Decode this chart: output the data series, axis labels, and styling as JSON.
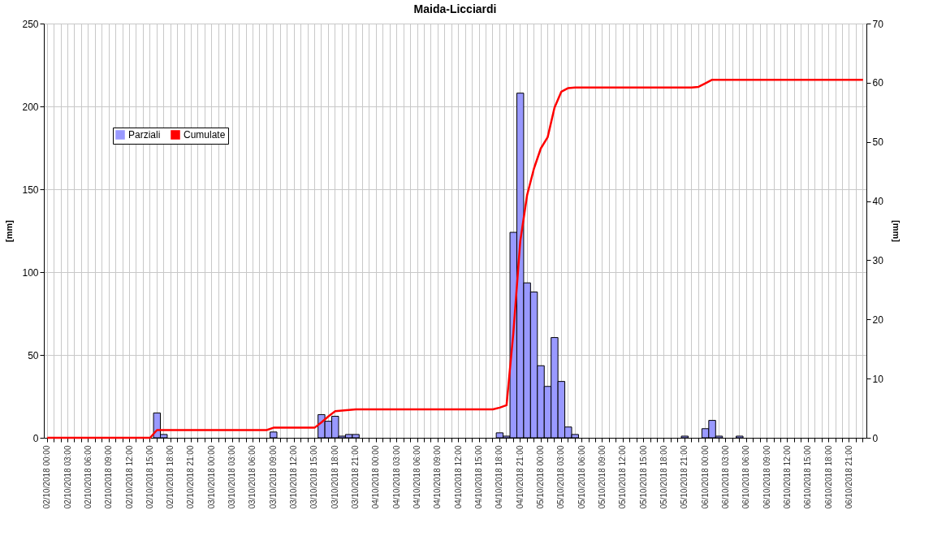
{
  "chart_data": {
    "type": "bar",
    "title": "Maida-Licciardi",
    "ylabel": "[mm]",
    "y2label": "[mm]",
    "categories": [
      "02/10/2018 00:00",
      null,
      null,
      "02/10/2018 03:00",
      null,
      null,
      "02/10/2018 06:00",
      null,
      null,
      "02/10/2018 09:00",
      null,
      null,
      "02/10/2018 12:00",
      null,
      null,
      "02/10/2018 15:00",
      null,
      null,
      "02/10/2018 18:00",
      null,
      null,
      "02/10/2018 21:00",
      null,
      null,
      "03/10/2018 00:00",
      null,
      null,
      "03/10/2018 03:00",
      null,
      null,
      "03/10/2018 06:00",
      null,
      null,
      "03/10/2018 09:00",
      null,
      null,
      "03/10/2018 12:00",
      null,
      null,
      "03/10/2018 15:00",
      null,
      null,
      "03/10/2018 18:00",
      null,
      null,
      "03/10/2018 21:00",
      null,
      null,
      "04/10/2018 00:00",
      null,
      null,
      "04/10/2018 03:00",
      null,
      null,
      "04/10/2018 06:00",
      null,
      null,
      "04/10/2018 09:00",
      null,
      null,
      "04/10/2018 12:00",
      null,
      null,
      "04/10/2018 15:00",
      null,
      null,
      "04/10/2018 18:00",
      null,
      null,
      "04/10/2018 21:00",
      null,
      null,
      "05/10/2018 00:00",
      null,
      null,
      "05/10/2018 03:00",
      null,
      null,
      "05/10/2018 06:00",
      null,
      null,
      "05/10/2018 09:00",
      null,
      null,
      "05/10/2018 12:00",
      null,
      null,
      "05/10/2018 15:00",
      null,
      null,
      "05/10/2018 18:00",
      null,
      null,
      "05/10/2018 21:00",
      null,
      null,
      "06/10/2018 00:00",
      null,
      null,
      "06/10/2018 03:00",
      null,
      null,
      "06/10/2018 06:00",
      null,
      null,
      "06/10/2018 09:00",
      null,
      null,
      "06/10/2018 12:00",
      null,
      null,
      "06/10/2018 15:00",
      null,
      null,
      "06/10/2018 18:00",
      null,
      null,
      "06/10/2018 21:00",
      null,
      null
    ],
    "series": [
      {
        "name": "Parziali",
        "color": "#9999ff",
        "values": [
          0,
          0,
          0,
          0,
          0,
          0,
          0,
          0,
          0,
          0,
          0,
          0,
          0,
          0,
          0,
          0,
          15,
          2,
          0,
          0,
          0,
          0,
          0,
          0,
          0,
          0,
          0,
          0,
          0,
          0,
          0,
          0,
          0,
          3.5,
          0,
          0,
          0,
          0,
          0,
          0,
          14,
          10,
          13,
          1,
          2,
          2,
          0,
          0,
          0,
          0,
          0,
          0,
          0,
          0,
          0,
          0,
          0,
          0,
          0,
          0,
          0,
          0,
          0,
          0,
          0,
          0,
          3,
          1,
          124,
          208,
          93.5,
          88,
          43.5,
          31,
          60.5,
          34,
          6.5,
          2,
          0,
          0,
          0,
          0,
          0,
          0,
          0,
          0,
          0,
          0,
          0,
          0,
          0,
          0,
          0,
          1,
          0,
          0,
          5.5,
          10.5,
          1,
          0,
          0,
          1,
          0,
          0,
          0,
          0,
          0,
          0,
          0,
          0,
          0,
          0,
          0,
          0,
          0,
          0,
          0,
          0,
          0,
          0
        ]
      },
      {
        "name": "Cumulate",
        "type": "line",
        "axis": "y2",
        "color": "#ff0000",
        "values": [
          0,
          0,
          0,
          0,
          0,
          0,
          0,
          0,
          0,
          0,
          0,
          0,
          0,
          0,
          0,
          0,
          1.3,
          1.3,
          1.3,
          1.3,
          1.3,
          1.3,
          1.3,
          1.3,
          1.3,
          1.3,
          1.3,
          1.3,
          1.3,
          1.3,
          1.3,
          1.3,
          1.3,
          1.7,
          1.7,
          1.7,
          1.7,
          1.7,
          1.7,
          1.7,
          2.6,
          3.6,
          4.5,
          4.6,
          4.7,
          4.8,
          4.8,
          4.8,
          4.8,
          4.8,
          4.8,
          4.8,
          4.8,
          4.8,
          4.8,
          4.8,
          4.8,
          4.8,
          4.8,
          4.8,
          4.8,
          4.8,
          4.8,
          4.8,
          4.8,
          4.8,
          5.1,
          5.5,
          17.8,
          33.2,
          41,
          45.5,
          48.9,
          50.8,
          55.8,
          58.5,
          59.1,
          59.2,
          59.2,
          59.2,
          59.2,
          59.2,
          59.2,
          59.2,
          59.2,
          59.2,
          59.2,
          59.2,
          59.2,
          59.2,
          59.2,
          59.2,
          59.2,
          59.2,
          59.2,
          59.3,
          59.9,
          60.5,
          60.5,
          60.5,
          60.5,
          60.5,
          60.5,
          60.5,
          60.5,
          60.5,
          60.5,
          60.5,
          60.5,
          60.5,
          60.5,
          60.5,
          60.5,
          60.5,
          60.5,
          60.5,
          60.5,
          60.5,
          60.5,
          60.5
        ]
      }
    ],
    "ylim": [
      0,
      250
    ],
    "yticks": [
      0,
      50,
      100,
      150,
      200,
      250
    ],
    "y2lim": [
      0,
      70
    ],
    "y2ticks": [
      0,
      10,
      20,
      30,
      40,
      50,
      60,
      70
    ],
    "grid": true,
    "legend": "top left"
  }
}
